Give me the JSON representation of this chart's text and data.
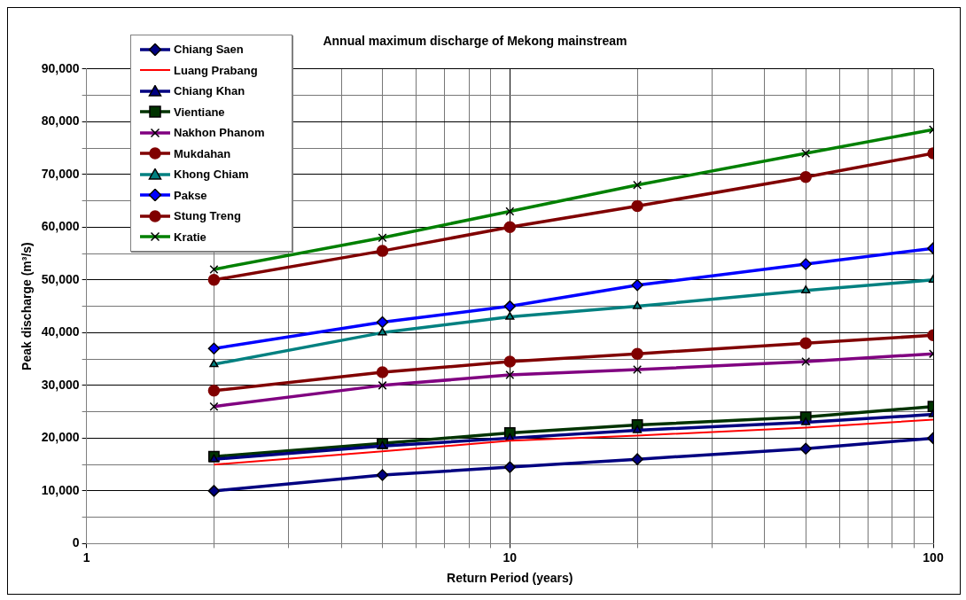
{
  "chart_data": {
    "type": "line",
    "title": "Annual maximum discharge of Mekong mainstream",
    "xlabel": "Return Period (years)",
    "ylabel": "Peak discharge (m³/s)",
    "x": [
      2,
      5,
      10,
      20,
      50,
      100
    ],
    "series": [
      {
        "name": "Chiang Saen",
        "color": "#000080",
        "marker": "diamond",
        "values": [
          10000,
          13000,
          14500,
          16000,
          18000,
          20000
        ]
      },
      {
        "name": "Luang Prabang",
        "color": "#ff0000",
        "marker": "none",
        "values": [
          15000,
          17500,
          19500,
          20500,
          22000,
          23500
        ]
      },
      {
        "name": "Chiang Khan",
        "color": "#000080",
        "marker": "triangle",
        "values": [
          16000,
          18500,
          20000,
          21500,
          23000,
          24500
        ]
      },
      {
        "name": "Vientiane",
        "color": "#003300",
        "marker": "square",
        "values": [
          16500,
          19000,
          21000,
          22500,
          24000,
          26000
        ]
      },
      {
        "name": "Nakhon Phanom",
        "color": "#800080",
        "marker": "cross",
        "values": [
          26000,
          30000,
          32000,
          33000,
          34500,
          36000
        ]
      },
      {
        "name": "Mukdahan",
        "color": "#800000",
        "marker": "circle",
        "values": [
          29000,
          32500,
          34500,
          36000,
          38000,
          39500
        ]
      },
      {
        "name": "Khong Chiam",
        "color": "#008080",
        "marker": "triangle",
        "values": [
          34000,
          40000,
          43000,
          45000,
          48000,
          50000
        ]
      },
      {
        "name": "Pakse",
        "color": "#0000ff",
        "marker": "diamond",
        "values": [
          37000,
          42000,
          45000,
          49000,
          53000,
          56000
        ]
      },
      {
        "name": "Stung Treng",
        "color": "#800000",
        "marker": "circle",
        "values": [
          50000,
          55500,
          60000,
          64000,
          69500,
          74000
        ]
      },
      {
        "name": "Kratie",
        "color": "#008000",
        "marker": "cross",
        "values": [
          52000,
          58000,
          63000,
          68000,
          74000,
          78500
        ]
      }
    ],
    "log": "x",
    "xlim": [
      1,
      100
    ],
    "xticks": [
      1,
      {
        "value": 2,
        "label": null
      },
      {
        "value": 3,
        "label": null
      },
      {
        "value": 4,
        "label": null
      },
      {
        "value": 5,
        "label": null
      },
      {
        "value": 6,
        "label": null
      },
      {
        "value": 7,
        "label": null
      },
      {
        "value": 8,
        "label": null
      },
      {
        "value": 9,
        "label": null
      },
      10,
      {
        "value": 20,
        "label": null
      },
      {
        "value": 30,
        "label": null
      },
      {
        "value": 40,
        "label": null
      },
      {
        "value": 50,
        "label": null
      },
      {
        "value": 60,
        "label": null
      },
      {
        "value": 70,
        "label": null
      },
      {
        "value": 80,
        "label": null
      },
      {
        "value": 90,
        "label": null
      },
      100
    ],
    "ylim": [
      0,
      90000
    ],
    "yticks": [
      {
        "value": 0,
        "label": "0"
      },
      {
        "value": 5000,
        "label": null
      },
      {
        "value": 10000,
        "label": "10,000"
      },
      {
        "value": 15000,
        "label": null
      },
      {
        "value": 20000,
        "label": "20,000"
      },
      {
        "value": 25000,
        "label": null
      },
      {
        "value": 30000,
        "label": "30,000"
      },
      {
        "value": 35000,
        "label": null
      },
      {
        "value": 40000,
        "label": "40,000"
      },
      {
        "value": 45000,
        "label": null
      },
      {
        "value": 50000,
        "label": "50,000"
      },
      {
        "value": 55000,
        "label": null
      },
      {
        "value": 60000,
        "label": "60,000"
      },
      {
        "value": 65000,
        "label": null
      },
      {
        "value": 70000,
        "label": "70,000"
      },
      {
        "value": 75000,
        "label": null
      },
      {
        "value": 80000,
        "label": "80,000"
      },
      {
        "value": 85000,
        "label": null
      },
      {
        "value": 90000,
        "label": "90,000"
      }
    ],
    "grid": true,
    "legend": "top left"
  }
}
